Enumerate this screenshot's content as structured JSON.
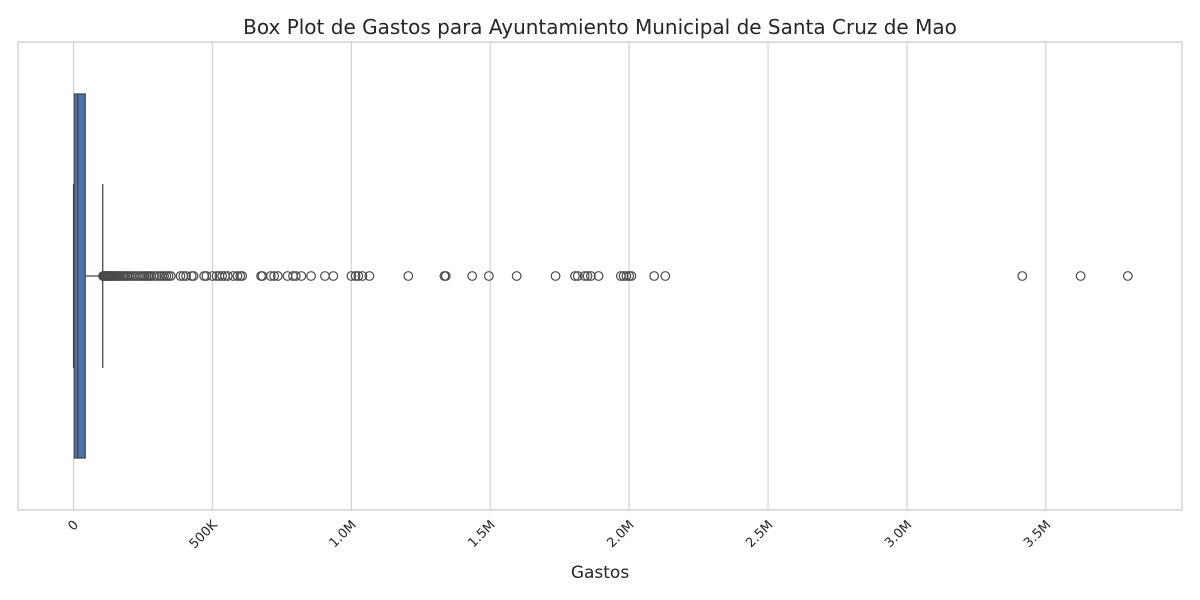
{
  "chart_data": {
    "type": "box",
    "orientation": "horizontal",
    "title": "Box Plot de Gastos para Ayuntamiento Municipal de Santa Cruz de Mao",
    "xlabel": "Gastos",
    "ylabel": "",
    "xlim": [
      -200000,
      3990000
    ],
    "x_ticks": [
      0,
      500000,
      1000000,
      1500000,
      2000000,
      2500000,
      3000000,
      3500000
    ],
    "x_tick_labels": [
      "0",
      "500K",
      "1.0M",
      "1.5M",
      "2.0M",
      "2.5M",
      "3.0M",
      "3.5M"
    ],
    "grid": true,
    "box": {
      "whisker_low": 0,
      "q1": 3000,
      "median": 15000,
      "q3": 42000,
      "whisker_high": 105000
    },
    "outliers": [
      106000,
      108000,
      110000,
      112000,
      115000,
      118000,
      121000,
      124000,
      127000,
      130000,
      134000,
      138000,
      142000,
      146000,
      150000,
      155000,
      160000,
      165000,
      170000,
      176000,
      182000,
      188000,
      194000,
      200000,
      208000,
      216000,
      224000,
      232000,
      240000,
      248000,
      255000,
      262000,
      268000,
      274000,
      280000,
      290000,
      300000,
      310000,
      318000,
      326000,
      334000,
      342000,
      350000,
      385000,
      395000,
      405000,
      425000,
      432000,
      470000,
      478000,
      500000,
      515000,
      525000,
      535000,
      545000,
      555000,
      575000,
      590000,
      600000,
      607000,
      675000,
      680000,
      710000,
      722000,
      735000,
      770000,
      790000,
      800000,
      820000,
      855000,
      905000,
      935000,
      1000000,
      1015000,
      1025000,
      1040000,
      1065000,
      1205000,
      1335000,
      1340000,
      1435000,
      1495000,
      1595000,
      1735000,
      1805000,
      1815000,
      1840000,
      1850000,
      1862000,
      1890000,
      1970000,
      1980000,
      1990000,
      2000000,
      2008000,
      2090000,
      2130000,
      3415000,
      3625000,
      3795000
    ],
    "colors": {
      "box_fill": "#4c72b0",
      "line": "#4a4a4a",
      "grid": "#d6d6d6",
      "frame": "#cccccc"
    }
  }
}
